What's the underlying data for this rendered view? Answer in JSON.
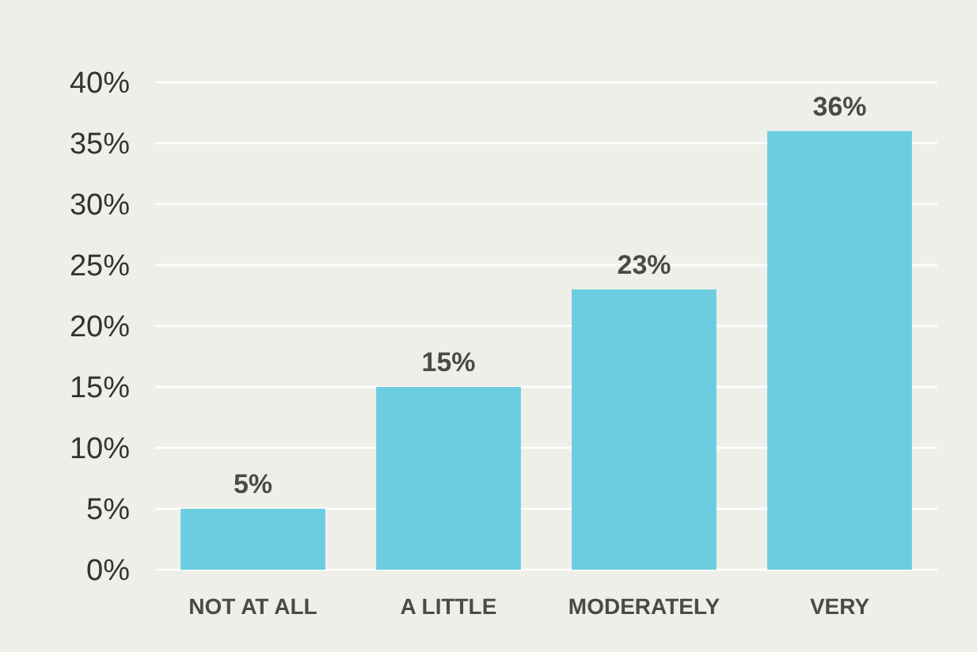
{
  "chart_data": {
    "type": "bar",
    "categories": [
      "NOT AT ALL",
      "A LITTLE",
      "MODERATELY",
      "VERY"
    ],
    "values": [
      5,
      15,
      23,
      36
    ],
    "color": "#6ccde0",
    "value_labels": [
      "5%",
      "15%",
      "23%",
      "36%"
    ],
    "ylim": [
      0,
      40
    ],
    "yticks": [
      {
        "value": 0,
        "label": "0%"
      },
      {
        "value": 5,
        "label": "5%"
      },
      {
        "value": 10,
        "label": "10%"
      },
      {
        "value": 15,
        "label": "15%"
      },
      {
        "value": 20,
        "label": "20%"
      },
      {
        "value": 25,
        "label": "25%"
      },
      {
        "value": 30,
        "label": "30%"
      },
      {
        "value": 35,
        "label": "35%"
      },
      {
        "value": 40,
        "label": "40%"
      }
    ],
    "grid": "y"
  }
}
